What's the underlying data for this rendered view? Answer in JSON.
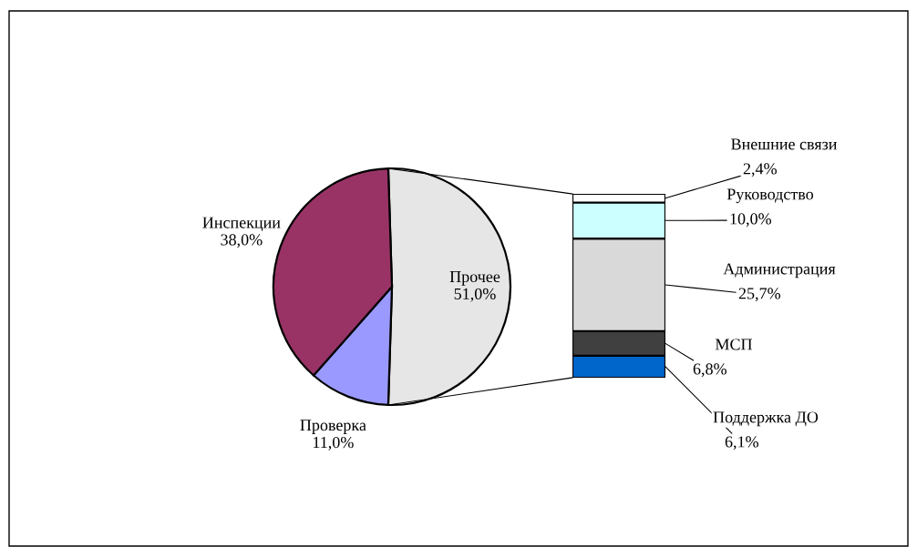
{
  "chart_data": [
    {
      "type": "pie",
      "categories": [
        "Прочее",
        "Проверка",
        "Инспекции"
      ],
      "values": [
        51.0,
        11.0,
        38.0
      ],
      "colors": [
        "#e6e6e6",
        "#9999ff",
        "#993366"
      ],
      "value_labels": [
        "51,0%",
        "11,0%",
        "38,0%"
      ]
    },
    {
      "type": "bar",
      "stacked": true,
      "categories": [
        null
      ],
      "series": [
        {
          "name": "Поддержка ДО",
          "color": "#0066cc",
          "values": [
            6.1
          ],
          "value_labels": [
            "6,1%"
          ]
        },
        {
          "name": "МСП",
          "color": "#404040",
          "values": [
            6.8
          ],
          "value_labels": [
            "6,8%"
          ]
        },
        {
          "name": "Администрация",
          "color": "#d9d9d9",
          "values": [
            25.7
          ],
          "value_labels": [
            "25,7%"
          ]
        },
        {
          "name": "Руководство",
          "color": "#ccffff",
          "values": [
            10.0
          ],
          "value_labels": [
            "10,0%"
          ]
        },
        {
          "name": "Внешние связи",
          "color": "#ffffff",
          "values": [
            2.4
          ],
          "value_labels": [
            "2,4%"
          ]
        }
      ]
    }
  ]
}
